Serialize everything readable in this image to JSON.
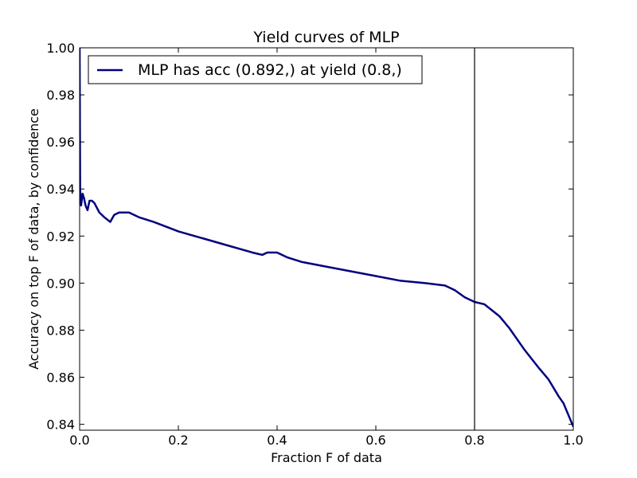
{
  "chart_data": {
    "type": "line",
    "title": "Yield curves of MLP",
    "xlabel": "Fraction F of data",
    "ylabel": "Accuracy on top F of data, by confidence",
    "xlim": [
      0.0,
      1.0
    ],
    "ylim": [
      0.8375,
      1.0
    ],
    "x_ticks": [
      0.0,
      0.2,
      0.4,
      0.6,
      0.8,
      1.0
    ],
    "x_tick_labels": [
      "0.0",
      "0.2",
      "0.4",
      "0.6",
      "0.8",
      "1.0"
    ],
    "y_ticks": [
      0.84,
      0.86,
      0.88,
      0.9,
      0.92,
      0.94,
      0.96,
      0.98,
      1.0
    ],
    "y_tick_labels": [
      "0.84",
      "0.86",
      "0.88",
      "0.90",
      "0.92",
      "0.94",
      "0.96",
      "0.98",
      "1.00"
    ],
    "grid": false,
    "legend_position": "top-left",
    "vertical_line_x": 0.8,
    "series": [
      {
        "name": "MLP has acc (0.892,) at yield (0.8,)",
        "color": "#000080",
        "x": [
          0.0,
          0.001,
          0.003,
          0.006,
          0.009,
          0.012,
          0.016,
          0.02,
          0.025,
          0.03,
          0.035,
          0.04,
          0.05,
          0.062,
          0.07,
          0.08,
          0.09,
          0.1,
          0.12,
          0.15,
          0.2,
          0.25,
          0.3,
          0.35,
          0.37,
          0.38,
          0.39,
          0.4,
          0.42,
          0.45,
          0.5,
          0.55,
          0.6,
          0.65,
          0.7,
          0.74,
          0.76,
          0.78,
          0.8,
          0.82,
          0.85,
          0.87,
          0.9,
          0.93,
          0.95,
          0.97,
          0.98,
          0.99,
          1.0
        ],
        "y": [
          1.0,
          0.94,
          0.933,
          0.938,
          0.936,
          0.933,
          0.931,
          0.935,
          0.935,
          0.934,
          0.932,
          0.93,
          0.928,
          0.926,
          0.929,
          0.93,
          0.93,
          0.93,
          0.928,
          0.926,
          0.922,
          0.919,
          0.916,
          0.913,
          0.912,
          0.913,
          0.913,
          0.913,
          0.911,
          0.909,
          0.907,
          0.905,
          0.903,
          0.901,
          0.9,
          0.899,
          0.897,
          0.894,
          0.892,
          0.891,
          0.886,
          0.881,
          0.872,
          0.864,
          0.859,
          0.852,
          0.849,
          0.844,
          0.839
        ]
      }
    ]
  }
}
